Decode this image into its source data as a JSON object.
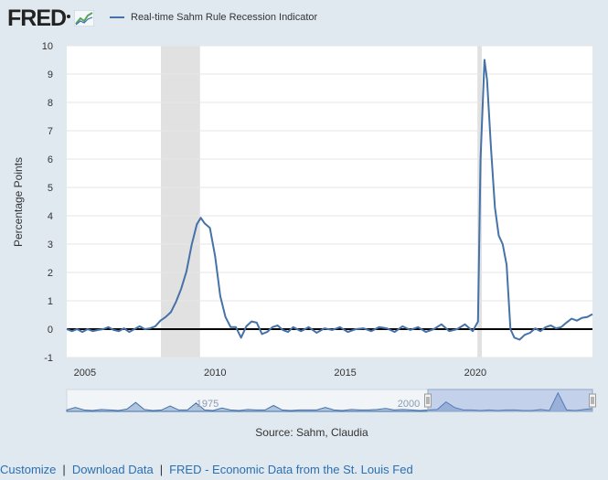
{
  "header": {
    "logo_text": "FRED",
    "logo_icon": "trend-graph-icon"
  },
  "legend": {
    "label": "Real-time Sahm Rule Recession Indicator",
    "color": "#4572a7"
  },
  "chart_data": {
    "type": "line",
    "title": "",
    "ylabel": "Percentage Points",
    "xlabel": "",
    "ylim": [
      -1,
      10
    ],
    "xlim": [
      2004.3,
      2024.5
    ],
    "x_ticks": [
      2005,
      2010,
      2015,
      2020
    ],
    "y_ticks": [
      -1,
      0,
      1,
      2,
      3,
      4,
      5,
      6,
      7,
      8,
      9,
      10
    ],
    "grid": true,
    "recession_bands": [
      [
        2007.92,
        2009.42
      ],
      [
        2020.08,
        2020.25
      ]
    ],
    "zero_line": 0,
    "series": [
      {
        "name": "Real-time Sahm Rule Recession Indicator",
        "color": "#4572a7",
        "x": [
          2004.3,
          2004.5,
          2004.7,
          2004.9,
          2005.1,
          2005.3,
          2005.5,
          2005.7,
          2005.9,
          2006.1,
          2006.3,
          2006.5,
          2006.7,
          2006.9,
          2007.1,
          2007.3,
          2007.5,
          2007.7,
          2007.9,
          2008.1,
          2008.3,
          2008.5,
          2008.7,
          2008.9,
          2009.1,
          2009.3,
          2009.45,
          2009.6,
          2009.8,
          2010.0,
          2010.2,
          2010.4,
          2010.6,
          2010.8,
          2011.0,
          2011.2,
          2011.4,
          2011.6,
          2011.8,
          2012.0,
          2012.2,
          2012.4,
          2012.6,
          2012.8,
          2013.0,
          2013.3,
          2013.6,
          2013.9,
          2014.2,
          2014.5,
          2014.8,
          2015.1,
          2015.4,
          2015.7,
          2016.0,
          2016.3,
          2016.6,
          2016.9,
          2017.2,
          2017.5,
          2017.8,
          2018.1,
          2018.4,
          2018.7,
          2019.0,
          2019.3,
          2019.6,
          2019.9,
          2020.1,
          2020.2,
          2020.35,
          2020.45,
          2020.6,
          2020.75,
          2020.9,
          2021.05,
          2021.2,
          2021.35,
          2021.5,
          2021.7,
          2021.9,
          2022.1,
          2022.3,
          2022.5,
          2022.7,
          2022.9,
          2023.1,
          2023.3,
          2023.5,
          2023.7,
          2023.9,
          2024.1,
          2024.3,
          2024.5
        ],
        "values": [
          0.0,
          -0.07,
          0.0,
          -0.1,
          0.0,
          -0.07,
          -0.03,
          0.0,
          0.07,
          -0.03,
          -0.07,
          0.03,
          -0.1,
          0.0,
          0.1,
          0.0,
          0.03,
          0.1,
          0.3,
          0.43,
          0.6,
          0.97,
          1.43,
          2.03,
          2.97,
          3.7,
          3.93,
          3.73,
          3.57,
          2.57,
          1.17,
          0.43,
          0.07,
          0.07,
          -0.3,
          0.1,
          0.27,
          0.23,
          -0.17,
          -0.1,
          0.07,
          0.13,
          -0.03,
          -0.1,
          0.07,
          -0.07,
          0.07,
          -0.13,
          0.03,
          -0.03,
          0.07,
          -0.1,
          0.0,
          0.03,
          -0.07,
          0.07,
          0.03,
          -0.1,
          0.1,
          -0.03,
          0.07,
          -0.1,
          0.0,
          0.17,
          -0.07,
          0.0,
          0.17,
          -0.07,
          0.27,
          6.0,
          9.5,
          8.8,
          6.4,
          4.3,
          3.3,
          3.0,
          2.27,
          0.0,
          -0.3,
          -0.37,
          -0.2,
          -0.13,
          0.03,
          -0.07,
          0.07,
          0.13,
          0.03,
          0.07,
          0.23,
          0.37,
          0.3,
          0.4,
          0.43,
          0.53
        ]
      }
    ],
    "navigator": {
      "x_ticks": [
        1975,
        2000
      ],
      "series_values": [
        0.1,
        0.6,
        0.1,
        0.0,
        0.2,
        0.1,
        0.0,
        0.3,
        1.6,
        0.2,
        0.0,
        0.1,
        0.9,
        0.1,
        0.1,
        1.5,
        0.1,
        0.0,
        0.5,
        0.1,
        0.0,
        0.2,
        0.1,
        0.1,
        1.0,
        0.1,
        0.0,
        0.1,
        0.1,
        0.1,
        0.6,
        0.1,
        0.0,
        0.2,
        0.1,
        0.1,
        0.2,
        0.4,
        0.1,
        0.2,
        0.1,
        0.0,
        0.1,
        0.2,
        1.7,
        0.6,
        0.1,
        0.1,
        0.0,
        0.1,
        0.0,
        0.1,
        0.1,
        0.0,
        0.0,
        0.2,
        0.0,
        3.5,
        0.1,
        0.0,
        0.2,
        0.4
      ]
    }
  },
  "source": {
    "text": "Source: Sahm, Claudia"
  },
  "footer": {
    "links": [
      {
        "label": "Customize"
      },
      {
        "label": "Download Data"
      },
      {
        "label": "FRED - Economic Data from the St. Louis Fed"
      }
    ]
  }
}
